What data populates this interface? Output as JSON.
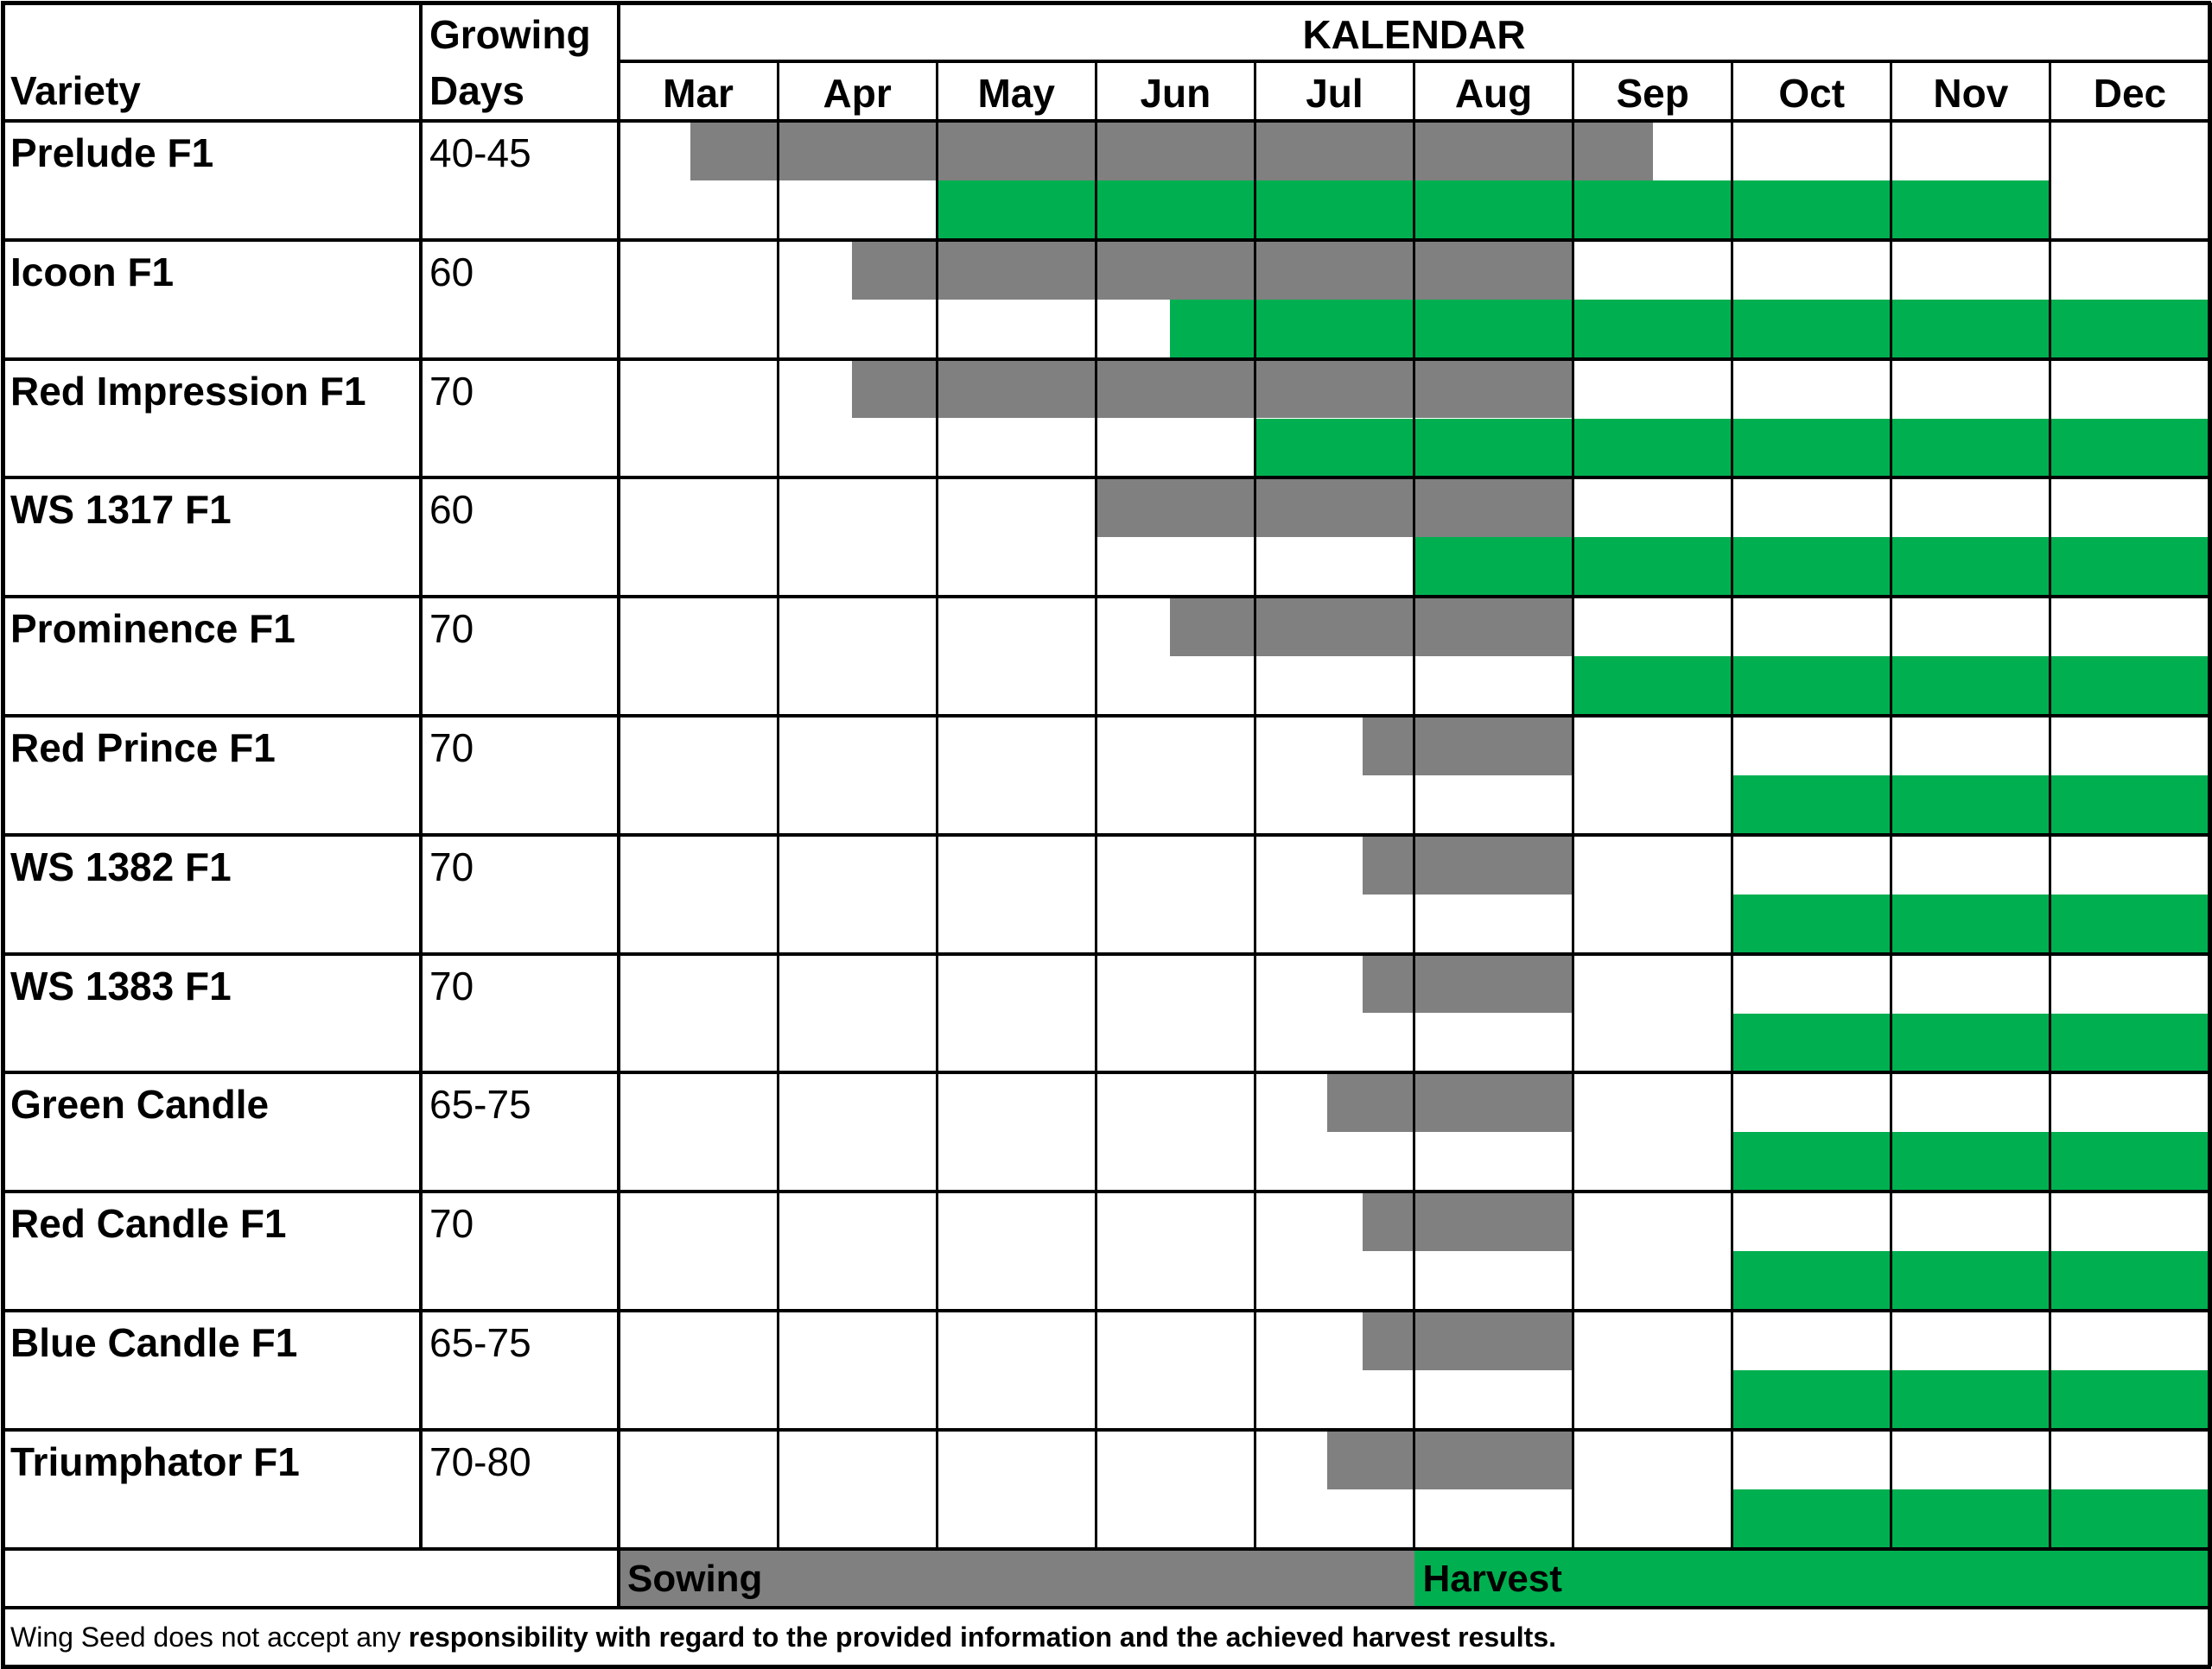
{
  "header": {
    "variety_label": "Variety",
    "growing_label_1": "Growing",
    "growing_label_2": "Days",
    "calendar_title": "KALENDAR"
  },
  "months": [
    "Mar",
    "Apr",
    "May",
    "Jun",
    "Jul",
    "Aug",
    "Sep",
    "Oct",
    "Nov",
    "Dec"
  ],
  "rows": [
    {
      "variety": "Prelude F1",
      "days": "40-45",
      "sowing": [
        "Mar 15",
        "Sep 15"
      ],
      "harvest": [
        "May 1",
        "Nov 30"
      ]
    },
    {
      "variety": "Icoon F1",
      "days": "60",
      "sowing": [
        "Apr 15",
        "Aug 31"
      ],
      "harvest": [
        "Jun 15",
        "Dec 31"
      ]
    },
    {
      "variety": "Red Impression F1",
      "days": "70",
      "sowing": [
        "Apr 15",
        "Aug 31"
      ],
      "harvest": [
        "Jul 1",
        "Dec 31"
      ]
    },
    {
      "variety": "WS 1317 F1",
      "days": "60",
      "sowing": [
        "Jun 1",
        "Aug 31"
      ],
      "harvest": [
        "Aug 1",
        "Dec 31"
      ]
    },
    {
      "variety": "Prominence F1",
      "days": "70",
      "sowing": [
        "Jun 15",
        "Aug 31"
      ],
      "harvest": [
        "Sep 1",
        "Dec 31"
      ]
    },
    {
      "variety": "Red Prince F1",
      "days": "70",
      "sowing": [
        "Jul 22",
        "Aug 31"
      ],
      "harvest": [
        "Oct 1",
        "Dec 31"
      ]
    },
    {
      "variety": "WS 1382 F1",
      "days": "70",
      "sowing": [
        "Jul 22",
        "Aug 31"
      ],
      "harvest": [
        "Oct 1",
        "Dec 31"
      ]
    },
    {
      "variety": "WS 1383 F1",
      "days": "70",
      "sowing": [
        "Jul 22",
        "Aug 31"
      ],
      "harvest": [
        "Oct 1",
        "Dec 31"
      ]
    },
    {
      "variety": "Green Candle",
      "days": "65-75",
      "sowing": [
        "Jul 15",
        "Aug 31"
      ],
      "harvest": [
        "Oct 1",
        "Dec 31"
      ]
    },
    {
      "variety": "Red Candle F1",
      "days": "70",
      "sowing": [
        "Jul 22",
        "Aug 31"
      ],
      "harvest": [
        "Oct 1",
        "Dec 31"
      ]
    },
    {
      "variety": "Blue Candle F1",
      "days": "65-75",
      "sowing": [
        "Jul 22",
        "Aug 31"
      ],
      "harvest": [
        "Oct 1",
        "Dec 31"
      ]
    },
    {
      "variety": "Triumphator F1",
      "days": "70-80",
      "sowing": [
        "Jul 15",
        "Aug 31"
      ],
      "harvest": [
        "Oct 1",
        "Dec 31"
      ]
    }
  ],
  "legend": {
    "sowing_label": "Sowing",
    "harvest_label": "Harvest"
  },
  "colors": {
    "sowing": "#808080",
    "harvest": "#00b050"
  },
  "disclaimer": {
    "lead": "Wing Seed does not accept any",
    "rest": " responsibility with regard to the provided information and the achieved harvest results."
  }
}
